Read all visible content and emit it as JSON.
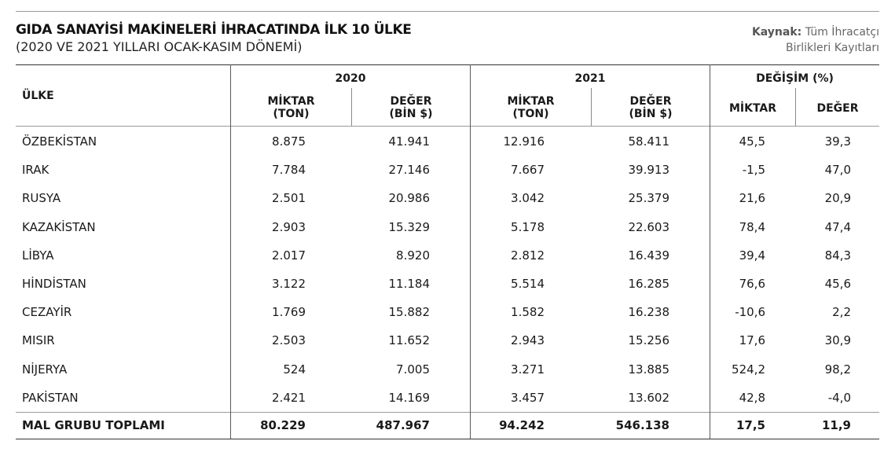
{
  "title": "GIDA SANAYİSİ MAKİNELERİ İHRACATINDA İLK 10 ÜLKE",
  "subtitle": "(2020 VE 2021 YILLARI OCAK-KASIM DÖNEMİ)",
  "source": {
    "label": "Kaynak:",
    "line1": "Tüm İhracatçı",
    "line2": "Birlikleri Kayıtları"
  },
  "headers": {
    "country": "ÜLKE",
    "year2020": "2020",
    "year2021": "2021",
    "change": "DEĞİŞİM (%)",
    "qty_l1": "MİKTAR",
    "qty_l2": "(TON)",
    "val_l1": "DEĞER",
    "val_l2": "(BİN $)",
    "chg_qty": "MİKTAR",
    "chg_val": "DEĞER"
  },
  "rows": [
    {
      "country": "ÖZBEKİSTAN",
      "q2020": "8.875",
      "v2020": "41.941",
      "q2021": "12.916",
      "v2021": "58.411",
      "cq": "45,5",
      "cv": "39,3"
    },
    {
      "country": "IRAK",
      "q2020": "7.784",
      "v2020": "27.146",
      "q2021": "7.667",
      "v2021": "39.913",
      "cq": "-1,5",
      "cv": "47,0"
    },
    {
      "country": "RUSYA",
      "q2020": "2.501",
      "v2020": "20.986",
      "q2021": "3.042",
      "v2021": "25.379",
      "cq": "21,6",
      "cv": "20,9"
    },
    {
      "country": "KAZAKİSTAN",
      "q2020": "2.903",
      "v2020": "15.329",
      "q2021": "5.178",
      "v2021": "22.603",
      "cq": "78,4",
      "cv": "47,4"
    },
    {
      "country": "LİBYA",
      "q2020": "2.017",
      "v2020": "8.920",
      "q2021": "2.812",
      "v2021": "16.439",
      "cq": "39,4",
      "cv": "84,3"
    },
    {
      "country": "HİNDİSTAN",
      "q2020": "3.122",
      "v2020": "11.184",
      "q2021": "5.514",
      "v2021": "16.285",
      "cq": "76,6",
      "cv": "45,6"
    },
    {
      "country": "CEZAYİR",
      "q2020": "1.769",
      "v2020": "15.882",
      "q2021": "1.582",
      "v2021": "16.238",
      "cq": "-10,6",
      "cv": "2,2"
    },
    {
      "country": "MISIR",
      "q2020": "2.503",
      "v2020": "11.652",
      "q2021": "2.943",
      "v2021": "15.256",
      "cq": "17,6",
      "cv": "30,9"
    },
    {
      "country": "NİJERYA",
      "q2020": "524",
      "v2020": "7.005",
      "q2021": "3.271",
      "v2021": "13.885",
      "cq": "524,2",
      "cv": "98,2"
    },
    {
      "country": "PAKİSTAN",
      "q2020": "2.421",
      "v2020": "14.169",
      "q2021": "3.457",
      "v2021": "13.602",
      "cq": "42,8",
      "cv": "-4,0"
    }
  ],
  "total": {
    "country": "MAL GRUBU TOPLAMI",
    "q2020": "80.229",
    "v2020": "487.967",
    "q2021": "94.242",
    "v2021": "546.138",
    "cq": "17,5",
    "cv": "11,9"
  }
}
